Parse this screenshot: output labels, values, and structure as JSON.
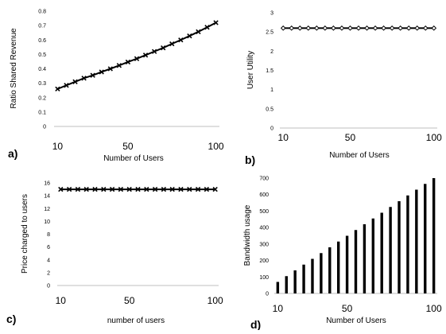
{
  "chart_data": [
    {
      "type": "line",
      "panel_label": "a)",
      "xlabel": "Number of Users",
      "ylabel": "Ratio Shared Revenue",
      "x": [
        10,
        15,
        20,
        25,
        30,
        35,
        40,
        45,
        50,
        55,
        60,
        65,
        70,
        75,
        80,
        85,
        90,
        95,
        100
      ],
      "series": [
        {
          "values": [
            0.26,
            0.285,
            0.31,
            0.335,
            0.355,
            0.378,
            0.4,
            0.423,
            0.447,
            0.47,
            0.495,
            0.52,
            0.545,
            0.573,
            0.6,
            0.628,
            0.657,
            0.688,
            0.72
          ],
          "marker": "x",
          "color": "#000000"
        }
      ],
      "xticks": [
        10,
        50,
        100
      ],
      "xtick_labels": [
        "10",
        "50",
        "100"
      ],
      "yticks": [
        0,
        0.1,
        0.2,
        0.3,
        0.4,
        0.5,
        0.6,
        0.7,
        0.8
      ],
      "ytick_labels": [
        "0",
        "0.1",
        "0.2",
        "0.3",
        "0.4",
        "0.5",
        "0.6",
        "0.7",
        "0.8"
      ],
      "ylim": [
        0,
        0.8
      ],
      "xlim": [
        8,
        102
      ],
      "grid": false
    },
    {
      "type": "line",
      "panel_label": "b)",
      "xlabel": "Number of Users",
      "ylabel": "User Utility",
      "x": [
        10,
        15,
        20,
        25,
        30,
        35,
        40,
        45,
        50,
        55,
        60,
        65,
        70,
        75,
        80,
        85,
        90,
        95,
        100
      ],
      "series": [
        {
          "values": [
            2.6,
            2.6,
            2.6,
            2.6,
            2.6,
            2.6,
            2.6,
            2.6,
            2.6,
            2.6,
            2.6,
            2.6,
            2.6,
            2.6,
            2.6,
            2.6,
            2.6,
            2.6,
            2.6
          ],
          "marker": "diamond",
          "color": "#000000"
        }
      ],
      "xticks": [
        10,
        50,
        100
      ],
      "xtick_labels": [
        "10",
        "50",
        "100"
      ],
      "yticks": [
        0,
        0.5,
        1,
        1.5,
        2,
        2.5,
        3
      ],
      "ytick_labels": [
        "0",
        "0.5",
        "1",
        "1.5",
        "2",
        "2.5",
        "3"
      ],
      "ylim": [
        0,
        3
      ],
      "xlim": [
        8,
        102
      ],
      "grid": false
    },
    {
      "type": "line",
      "panel_label": "c)",
      "xlabel": "number of users",
      "ylabel": "Price charged to users",
      "x": [
        10,
        15,
        20,
        25,
        30,
        35,
        40,
        45,
        50,
        55,
        60,
        65,
        70,
        75,
        80,
        85,
        90,
        95,
        100
      ],
      "series": [
        {
          "values": [
            15,
            15,
            15,
            15,
            15,
            15,
            15,
            15,
            15,
            15,
            15,
            15,
            15,
            15,
            15,
            15,
            15,
            15,
            15
          ],
          "marker": "x",
          "color": "#000000"
        }
      ],
      "xticks": [
        10,
        50,
        100
      ],
      "xtick_labels": [
        "10",
        "50",
        "100"
      ],
      "yticks": [
        0,
        2,
        4,
        6,
        8,
        10,
        12,
        14,
        16
      ],
      "ytick_labels": [
        "0",
        "2",
        "4",
        "6",
        "8",
        "10",
        "12",
        "14",
        "16"
      ],
      "ylim": [
        0,
        16
      ],
      "xlim": [
        8,
        102
      ],
      "grid": false
    },
    {
      "type": "bar",
      "panel_label": "d)",
      "xlabel": "Number of Users",
      "ylabel": "Bandwidth usage",
      "x": [
        10,
        15,
        20,
        25,
        30,
        35,
        40,
        45,
        50,
        55,
        60,
        65,
        70,
        75,
        80,
        85,
        90,
        95,
        100
      ],
      "series": [
        {
          "values": [
            70,
            105,
            140,
            175,
            210,
            245,
            280,
            315,
            350,
            385,
            420,
            455,
            490,
            525,
            560,
            595,
            630,
            665,
            700
          ],
          "color": "#000000"
        }
      ],
      "xticks": [
        10,
        50,
        100
      ],
      "xtick_labels": [
        "10",
        "50",
        "100"
      ],
      "yticks": [
        0,
        100,
        200,
        300,
        400,
        500,
        600,
        700
      ],
      "ytick_labels": [
        "0",
        "100",
        "200",
        "300",
        "400",
        "500",
        "600",
        "700"
      ],
      "ylim": [
        0,
        700
      ],
      "xlim": [
        8,
        102
      ],
      "grid": false
    }
  ]
}
